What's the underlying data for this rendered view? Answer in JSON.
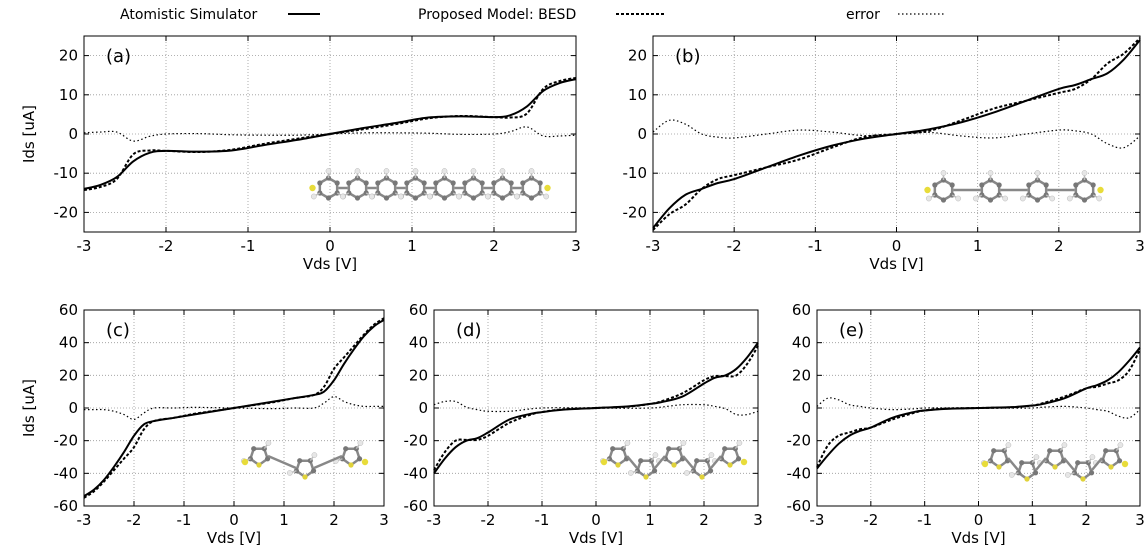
{
  "legend": {
    "items": [
      {
        "label": "Atomistic Simulator",
        "style": "solid"
      },
      {
        "label": "Proposed Model: BESD",
        "style": "dashed"
      },
      {
        "label": "error",
        "style": "dotted"
      }
    ]
  },
  "chart_data": [
    {
      "type": "line",
      "panel_label": "(a)",
      "xlabel": "Vds [V]",
      "ylabel": "Ids [uA]",
      "xlim": [
        -3,
        3
      ],
      "ylim": [
        -25,
        25
      ],
      "xticks": [
        "-3",
        "-2",
        "-1",
        "0",
        "1",
        "2",
        "3"
      ],
      "yticks": [
        "-20",
        "-10",
        "0",
        "10",
        "20"
      ],
      "grid": true,
      "x": [
        -3,
        -2.8,
        -2.6,
        -2.4,
        -2.2,
        -2,
        -1.6,
        -1.2,
        -0.8,
        -0.4,
        0,
        0.4,
        0.8,
        1.2,
        1.6,
        2,
        2.2,
        2.4,
        2.6,
        2.8,
        3
      ],
      "series": [
        {
          "name": "Atomistic Simulator",
          "values": [
            -14,
            -13,
            -11,
            -7,
            -4.8,
            -4.3,
            -4.5,
            -4.2,
            -2.8,
            -1.5,
            0,
            1.5,
            2.8,
            4.2,
            4.5,
            4.3,
            4.8,
            7,
            11,
            13,
            14
          ]
        },
        {
          "name": "Proposed Model: BESD",
          "values": [
            -14.3,
            -13.5,
            -11.5,
            -5.2,
            -4.2,
            -4.3,
            -4.6,
            -4,
            -2.5,
            -1.2,
            0,
            1.2,
            2.5,
            4,
            4.6,
            4.3,
            4.2,
            5.2,
            11.5,
            13.5,
            14.3
          ]
        },
        {
          "name": "error",
          "values": [
            0.3,
            0.5,
            0.5,
            -1.8,
            -0.6,
            0,
            0.1,
            -0.2,
            -0.3,
            -0.3,
            0,
            0.3,
            0.3,
            0.2,
            -0.1,
            0,
            0.6,
            1.8,
            -0.5,
            -0.5,
            -0.3
          ]
        }
      ]
    },
    {
      "type": "line",
      "panel_label": "(b)",
      "xlabel": "Vds [V]",
      "ylabel": "",
      "xlim": [
        -3,
        3
      ],
      "ylim": [
        -25,
        25
      ],
      "xticks": [
        "-3",
        "-2",
        "-1",
        "0",
        "1",
        "2",
        "3"
      ],
      "yticks": [
        "-20",
        "-10",
        "0",
        "10",
        "20"
      ],
      "grid": true,
      "x": [
        -3,
        -2.8,
        -2.6,
        -2.4,
        -2.2,
        -2,
        -1.6,
        -1.2,
        -0.8,
        -0.4,
        0,
        0.4,
        0.8,
        1.2,
        1.6,
        2,
        2.2,
        2.4,
        2.6,
        2.8,
        3
      ],
      "series": [
        {
          "name": "Atomistic Simulator",
          "values": [
            -24,
            -19,
            -15.5,
            -14,
            -12.5,
            -11.5,
            -8.5,
            -5.5,
            -3,
            -1.2,
            0,
            1.2,
            3,
            5.5,
            8.5,
            11.5,
            12.5,
            14,
            15.5,
            19,
            24
          ]
        },
        {
          "name": "Proposed Model: BESD",
          "values": [
            -24.5,
            -20.5,
            -18,
            -14,
            -11.5,
            -10.5,
            -8.5,
            -6.5,
            -3.5,
            -0.8,
            0,
            0.8,
            3.5,
            6.5,
            8.5,
            10.5,
            11.5,
            14,
            18,
            20.5,
            24.5
          ]
        },
        {
          "name": "error",
          "values": [
            0.5,
            3.5,
            2.5,
            0,
            -0.8,
            -1,
            0,
            1,
            0.5,
            -0.4,
            0,
            0.4,
            -0.5,
            -1,
            0,
            1,
            0.8,
            0,
            -2.5,
            -3.5,
            -0.5
          ]
        }
      ]
    },
    {
      "type": "line",
      "panel_label": "(c)",
      "xlabel": "Vds [V]",
      "ylabel": "Ids [uA]",
      "xlim": [
        -3,
        3
      ],
      "ylim": [
        -60,
        60
      ],
      "xticks": [
        "-3",
        "-2",
        "-1",
        "0",
        "1",
        "2",
        "3"
      ],
      "yticks": [
        "-60",
        "-40",
        "-20",
        "0",
        "20",
        "40",
        "60"
      ],
      "grid": true,
      "x": [
        -3,
        -2.8,
        -2.6,
        -2.4,
        -2.2,
        -2,
        -1.8,
        -1.6,
        -1.2,
        -0.8,
        -0.4,
        0,
        0.4,
        0.8,
        1.2,
        1.6,
        1.8,
        2,
        2.2,
        2.4,
        2.6,
        2.8,
        3
      ],
      "series": [
        {
          "name": "Atomistic Simulator",
          "values": [
            -54,
            -50,
            -44,
            -36,
            -27,
            -17,
            -10,
            -8,
            -6,
            -4,
            -2,
            0,
            2,
            4,
            6,
            8,
            10,
            17,
            27,
            36,
            44,
            50,
            54
          ]
        },
        {
          "name": "Proposed Model: BESD",
          "values": [
            -55,
            -51,
            -45,
            -38,
            -31,
            -24,
            -13,
            -8,
            -6,
            -3.6,
            -1.8,
            0,
            1.8,
            3.6,
            6,
            8,
            13,
            24,
            31,
            38,
            45,
            51,
            55
          ]
        },
        {
          "name": "error",
          "values": [
            -1,
            -1,
            -1,
            -2,
            -4,
            -7,
            -3,
            0,
            0,
            0.4,
            0.2,
            0,
            -0.2,
            -0.4,
            0,
            0,
            3,
            7,
            4,
            2,
            1,
            1,
            1
          ]
        }
      ]
    },
    {
      "type": "line",
      "panel_label": "(d)",
      "xlabel": "Vds [V]",
      "ylabel": "",
      "xlim": [
        -3,
        3
      ],
      "ylim": [
        -60,
        60
      ],
      "xticks": [
        "-3",
        "-2",
        "-1",
        "0",
        "1",
        "2",
        "3"
      ],
      "yticks": [
        "-60",
        "-40",
        "-20",
        "0",
        "20",
        "40",
        "60"
      ],
      "grid": true,
      "x": [
        -3,
        -2.8,
        -2.6,
        -2.4,
        -2.2,
        -2,
        -1.6,
        -1.2,
        -1,
        -0.6,
        0,
        0.6,
        1,
        1.2,
        1.6,
        2,
        2.2,
        2.4,
        2.6,
        2.8,
        3
      ],
      "series": [
        {
          "name": "Atomistic Simulator",
          "values": [
            -40,
            -31,
            -24,
            -20,
            -18.5,
            -15,
            -7,
            -3.5,
            -2.5,
            -1,
            0,
            1,
            2.5,
            3.5,
            7,
            15,
            18.5,
            20,
            24,
            31,
            40
          ]
        },
        {
          "name": "Proposed Model: BESD",
          "values": [
            -38,
            -27,
            -20,
            -19.5,
            -19.5,
            -17,
            -9,
            -4,
            -2.5,
            -0.8,
            0,
            0.8,
            2.5,
            4,
            9,
            17,
            19.5,
            19.5,
            20,
            27,
            38
          ]
        },
        {
          "name": "error",
          "values": [
            2,
            4,
            4,
            0.5,
            -1,
            -2,
            -2,
            -0.5,
            0,
            0.2,
            0,
            -0.2,
            0,
            0.5,
            2,
            2,
            1,
            -0.5,
            -4,
            -4,
            -2
          ]
        }
      ]
    },
    {
      "type": "line",
      "panel_label": "(e)",
      "xlabel": "Vds [V]",
      "ylabel": "",
      "xlim": [
        -3,
        3
      ],
      "ylim": [
        -60,
        60
      ],
      "xticks": [
        "-3",
        "-2",
        "-1",
        "0",
        "1",
        "2",
        "3"
      ],
      "yticks": [
        "-60",
        "-40",
        "-20",
        "0",
        "20",
        "40",
        "60"
      ],
      "grid": true,
      "x": [
        -3,
        -2.8,
        -2.6,
        -2.4,
        -2.2,
        -2,
        -1.6,
        -1.2,
        -1,
        -0.6,
        0,
        0.6,
        1,
        1.2,
        1.6,
        2,
        2.2,
        2.4,
        2.6,
        2.8,
        3
      ],
      "series": [
        {
          "name": "Atomistic Simulator",
          "values": [
            -37,
            -29,
            -22,
            -17,
            -14,
            -12,
            -6,
            -2.5,
            -1.5,
            -0.5,
            0,
            0.5,
            1.5,
            2.5,
            6,
            12,
            14,
            17,
            22,
            29,
            37
          ]
        },
        {
          "name": "Proposed Model: BESD",
          "values": [
            -36,
            -23,
            -17,
            -15,
            -13,
            -12,
            -7,
            -3,
            -1.5,
            -0.4,
            0,
            0.4,
            1.5,
            3,
            7,
            12,
            13,
            15,
            17,
            23,
            36
          ]
        },
        {
          "name": "error",
          "values": [
            1,
            6,
            5,
            2,
            1,
            0,
            -1,
            -0.5,
            0,
            0.1,
            0,
            -0.1,
            0,
            0.5,
            1,
            0,
            -1,
            -2,
            -5,
            -6,
            -1
          ]
        }
      ]
    }
  ]
}
